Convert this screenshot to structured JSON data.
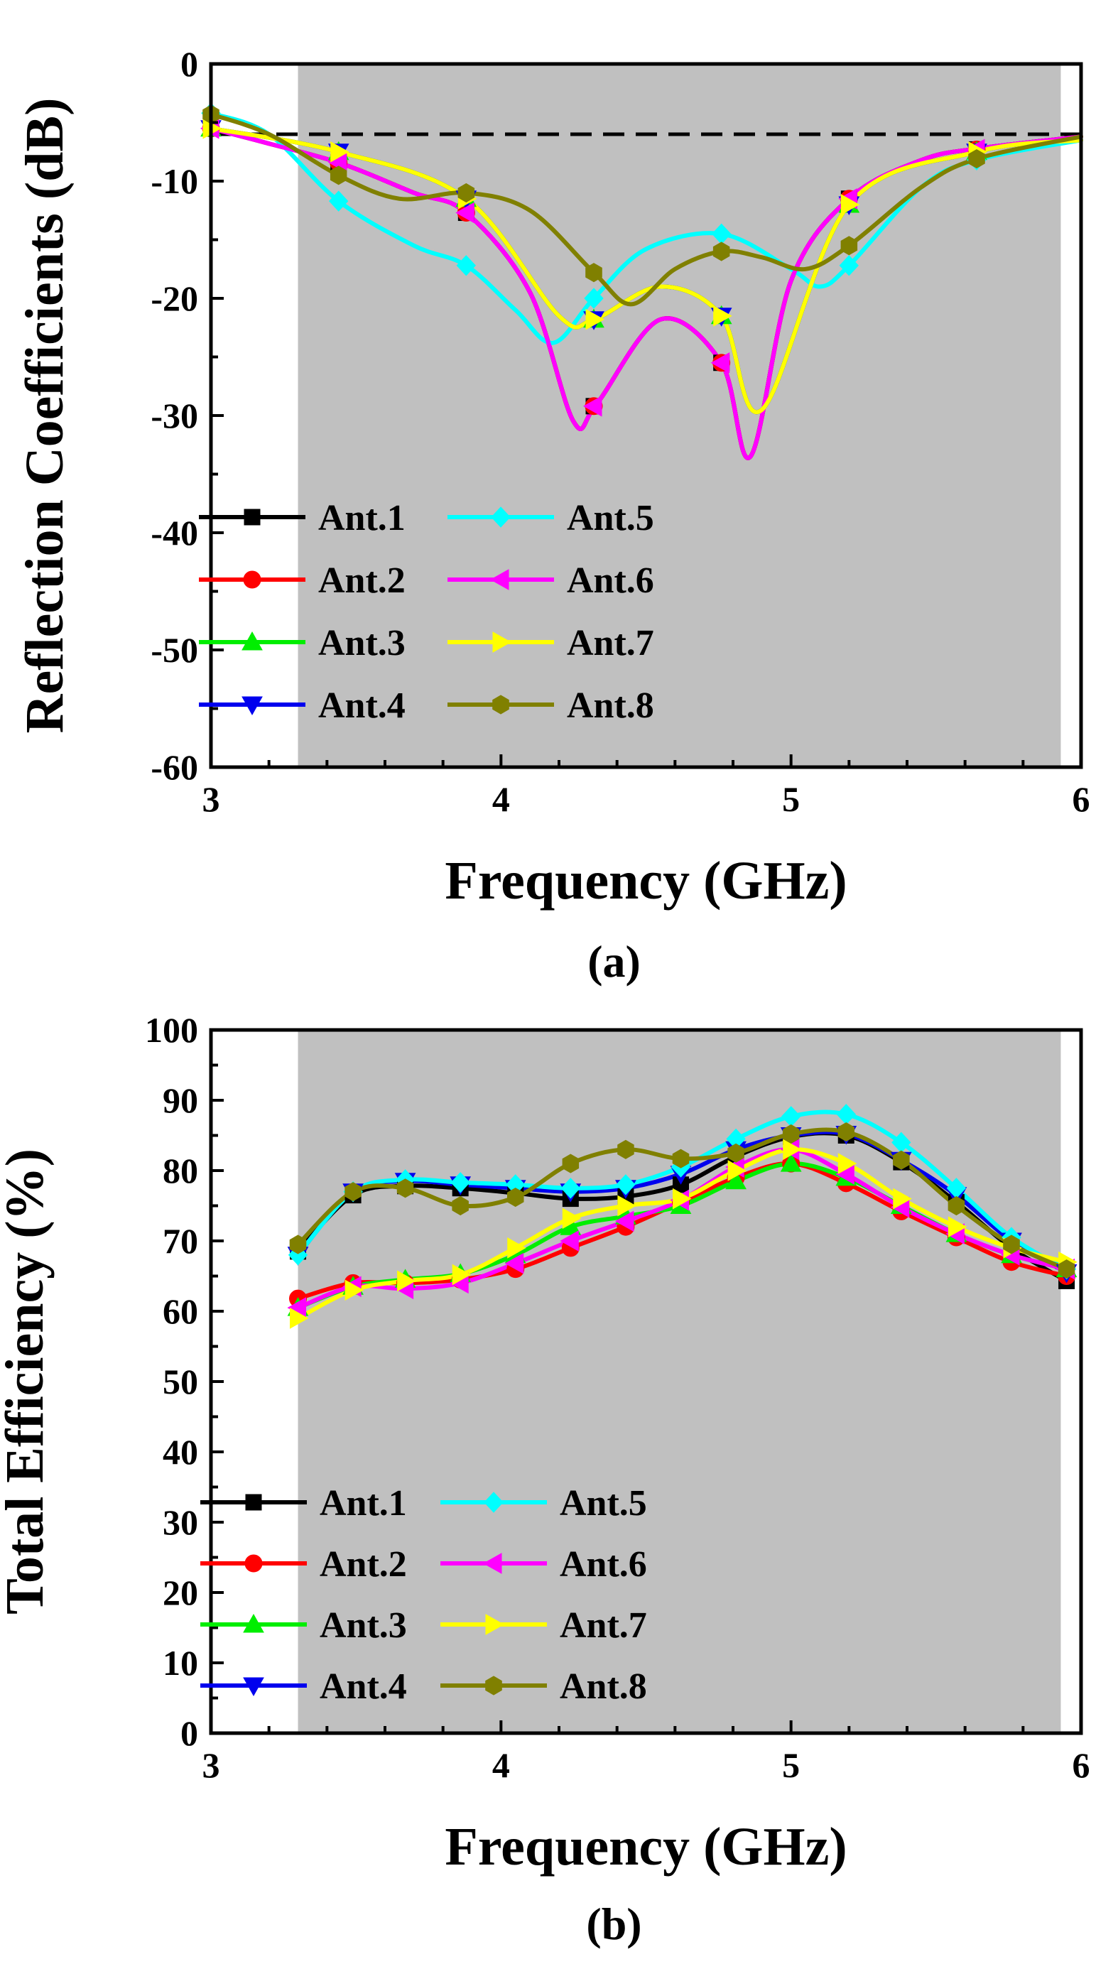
{
  "chart_data": [
    {
      "type": "line",
      "panel_label": "(a)",
      "xlabel": "Frequency (GHz)",
      "ylabel": "Reflection Coefficients (dB)",
      "xlim": [
        3,
        6
      ],
      "ylim": [
        -60,
        0
      ],
      "xticks": [
        "3",
        "4",
        "5",
        "6"
      ],
      "yticks": [
        "0",
        "-10",
        "-20",
        "-30",
        "-40",
        "-50",
        "-60"
      ],
      "shaded_band": [
        3.3,
        5.93
      ],
      "reference_line": -6,
      "legend": [
        "Ant.1",
        "Ant.2",
        "Ant.3",
        "Ant.4",
        "Ant.5",
        "Ant.6",
        "Ant.7",
        "Ant.8"
      ],
      "series": [
        {
          "name": "Ant.1",
          "color": "#000000",
          "marker": "square",
          "x": [
            3.0,
            3.2,
            3.45,
            3.7,
            3.88,
            4.1,
            4.25,
            4.33,
            4.55,
            4.76,
            4.86,
            5.0,
            5.2,
            5.45,
            5.65,
            6.0
          ],
          "values": [
            -5.5,
            -6.8,
            -8.5,
            -11.0,
            -12.7,
            -19.5,
            -30.5,
            -29.0,
            -21.8,
            -25.5,
            -33.5,
            -18.5,
            -11.5,
            -8.2,
            -7.2,
            -6.2
          ],
          "marker_x": [
            3.0,
            3.44,
            3.88,
            4.32,
            4.76,
            5.2,
            5.64
          ],
          "marker_y": [
            -5.5,
            -8.4,
            -12.7,
            -29.2,
            -25.5,
            -11.5,
            -7.3
          ]
        },
        {
          "name": "Ant.2",
          "color": "#ff0000",
          "marker": "circle",
          "x": [
            3.0,
            3.2,
            3.45,
            3.7,
            3.88,
            4.1,
            4.25,
            4.33,
            4.55,
            4.76,
            4.86,
            5.0,
            5.2,
            5.45,
            5.65,
            6.0
          ],
          "values": [
            -5.5,
            -6.8,
            -8.5,
            -11.0,
            -12.7,
            -19.5,
            -30.5,
            -29.0,
            -21.8,
            -25.5,
            -33.5,
            -18.5,
            -11.5,
            -8.2,
            -7.2,
            -6.2
          ],
          "marker_x": [
            3.0,
            3.44,
            3.88,
            4.32,
            4.76,
            5.2,
            5.64
          ],
          "marker_y": [
            -5.5,
            -8.4,
            -12.7,
            -29.2,
            -25.5,
            -11.5,
            -7.3
          ]
        },
        {
          "name": "Ant.3",
          "color": "#00ee00",
          "marker": "triangle-up",
          "x": [
            3.0,
            3.44,
            3.88,
            4.2,
            4.32,
            4.55,
            4.76,
            4.9,
            5.2,
            5.64,
            6.0
          ],
          "values": [
            -5.5,
            -7.5,
            -11.5,
            -21.5,
            -21.8,
            -19.0,
            -21.5,
            -29.5,
            -12.0,
            -7.5,
            -6.5
          ],
          "marker_x": [
            3.0,
            3.44,
            3.88,
            4.32,
            4.76,
            5.2,
            5.64
          ],
          "marker_y": [
            -5.5,
            -7.5,
            -11.5,
            -21.8,
            -21.5,
            -12.0,
            -7.5
          ]
        },
        {
          "name": "Ant.4",
          "color": "#0000ee",
          "marker": "triangle-down",
          "x": [
            3.0,
            3.44,
            3.88,
            4.2,
            4.32,
            4.55,
            4.76,
            4.9,
            5.2,
            5.64,
            6.0
          ],
          "values": [
            -5.5,
            -7.5,
            -11.5,
            -21.5,
            -21.8,
            -19.0,
            -21.5,
            -29.5,
            -12.0,
            -7.5,
            -6.5
          ],
          "marker_x": [
            3.0,
            3.44,
            3.88,
            4.32,
            4.76,
            5.2,
            5.64
          ],
          "marker_y": [
            -5.5,
            -7.5,
            -11.5,
            -21.8,
            -21.5,
            -12.0,
            -7.5
          ]
        },
        {
          "name": "Ant.5",
          "color": "#00ffff",
          "marker": "diamond",
          "x": [
            3.0,
            3.2,
            3.44,
            3.7,
            3.88,
            4.05,
            4.18,
            4.32,
            4.5,
            4.76,
            5.0,
            5.1,
            5.2,
            5.45,
            5.64,
            6.0
          ],
          "values": [
            -4.2,
            -6.0,
            -11.7,
            -15.5,
            -17.2,
            -21.0,
            -23.8,
            -20.0,
            -15.8,
            -14.5,
            -17.5,
            -19.0,
            -17.2,
            -10.5,
            -8.2,
            -6.5
          ],
          "marker_x": [
            3.0,
            3.44,
            3.88,
            4.32,
            4.76,
            5.2,
            5.64
          ],
          "marker_y": [
            -4.2,
            -11.7,
            -17.2,
            -20.0,
            -14.5,
            -17.2,
            -8.2
          ]
        },
        {
          "name": "Ant.6",
          "color": "#ff00ff",
          "marker": "triangle-left",
          "x": [
            3.0,
            3.2,
            3.45,
            3.7,
            3.88,
            4.1,
            4.25,
            4.33,
            4.55,
            4.76,
            4.86,
            5.0,
            5.2,
            5.45,
            5.65,
            6.0
          ],
          "values": [
            -5.5,
            -6.8,
            -8.5,
            -11.0,
            -12.7,
            -19.5,
            -30.5,
            -29.0,
            -21.8,
            -25.5,
            -33.5,
            -18.5,
            -11.5,
            -8.2,
            -7.2,
            -6.2
          ],
          "marker_x": [
            3.0,
            3.44,
            3.88,
            4.32,
            4.76,
            5.2,
            5.64
          ],
          "marker_y": [
            -5.5,
            -8.4,
            -12.7,
            -29.2,
            -25.5,
            -11.5,
            -7.3
          ]
        },
        {
          "name": "Ant.7",
          "color": "#ffff00",
          "marker": "triangle-right",
          "x": [
            3.0,
            3.44,
            3.88,
            4.2,
            4.32,
            4.55,
            4.76,
            4.9,
            5.2,
            5.64,
            6.0
          ],
          "values": [
            -5.5,
            -7.5,
            -11.5,
            -21.5,
            -21.8,
            -19.0,
            -21.5,
            -29.5,
            -12.0,
            -7.5,
            -6.5
          ],
          "marker_x": [
            3.0,
            3.44,
            3.88,
            4.32,
            4.76,
            5.2,
            5.64
          ],
          "marker_y": [
            -5.5,
            -7.5,
            -11.5,
            -21.8,
            -21.5,
            -12.0,
            -7.5
          ]
        },
        {
          "name": "Ant.8",
          "color": "#808000",
          "marker": "hexagon",
          "x": [
            3.0,
            3.2,
            3.44,
            3.65,
            3.88,
            4.1,
            4.32,
            4.45,
            4.6,
            4.76,
            4.9,
            5.05,
            5.2,
            5.45,
            5.64,
            6.0
          ],
          "values": [
            -4.3,
            -6.0,
            -9.5,
            -11.5,
            -11.0,
            -12.5,
            -17.8,
            -20.5,
            -17.5,
            -16.0,
            -16.5,
            -17.5,
            -15.5,
            -10.5,
            -8.1,
            -6.2
          ],
          "marker_x": [
            3.0,
            3.44,
            3.88,
            4.32,
            4.76,
            5.2,
            5.64
          ],
          "marker_y": [
            -4.3,
            -9.5,
            -11.0,
            -17.8,
            -16.0,
            -15.5,
            -8.1
          ]
        }
      ]
    },
    {
      "type": "line",
      "panel_label": "(b)",
      "xlabel": "Frequency (GHz)",
      "ylabel": "Total Efficiency (%)",
      "xlim": [
        3,
        6
      ],
      "ylim": [
        0,
        100
      ],
      "xticks": [
        "3",
        "4",
        "5",
        "6"
      ],
      "yticks": [
        "100",
        "90",
        "80",
        "70",
        "60",
        "50",
        "40",
        "30",
        "20",
        "10",
        "0"
      ],
      "shaded_band": [
        3.3,
        5.93
      ],
      "legend": [
        "Ant.1",
        "Ant.2",
        "Ant.3",
        "Ant.4",
        "Ant.5",
        "Ant.6",
        "Ant.7",
        "Ant.8"
      ],
      "series": [
        {
          "name": "Ant.1",
          "color": "#000000",
          "marker": "square",
          "x": [
            3.3,
            3.49,
            3.67,
            3.86,
            4.05,
            4.24,
            4.43,
            4.62,
            4.81,
            5.0,
            5.19,
            5.38,
            5.57,
            5.76,
            5.95
          ],
          "values": [
            68.5,
            76.5,
            77.8,
            77.5,
            76.8,
            76.0,
            76.3,
            78.0,
            82.0,
            84.8,
            85.0,
            81.2,
            75.5,
            69.0,
            64.3
          ]
        },
        {
          "name": "Ant.2",
          "color": "#ff0000",
          "marker": "circle",
          "x": [
            3.3,
            3.49,
            3.67,
            3.86,
            4.05,
            4.24,
            4.43,
            4.62,
            4.81,
            5.0,
            5.19,
            5.38,
            5.57,
            5.76,
            5.95
          ],
          "values": [
            61.8,
            64.0,
            64.0,
            64.5,
            66.0,
            69.0,
            72.0,
            75.5,
            79.0,
            81.0,
            78.2,
            74.2,
            70.5,
            67.0,
            65.0
          ]
        },
        {
          "name": "Ant.3",
          "color": "#00ee00",
          "marker": "triangle-up",
          "x": [
            3.3,
            3.49,
            3.67,
            3.86,
            4.05,
            4.24,
            4.43,
            4.62,
            4.81,
            5.0,
            5.19,
            5.38,
            5.57,
            5.76,
            5.95
          ],
          "values": [
            60.5,
            63.5,
            64.5,
            65.3,
            68.0,
            72.0,
            73.5,
            75.0,
            78.5,
            81.0,
            79.0,
            75.0,
            71.0,
            68.0,
            66.0
          ]
        },
        {
          "name": "Ant.4",
          "color": "#0000ee",
          "marker": "triangle-down",
          "x": [
            3.3,
            3.49,
            3.67,
            3.86,
            4.05,
            4.24,
            4.43,
            4.62,
            4.81,
            5.0,
            5.19,
            5.38,
            5.57,
            5.76,
            5.95
          ],
          "values": [
            68.0,
            77.0,
            78.5,
            78.0,
            77.5,
            77.0,
            77.5,
            79.5,
            83.0,
            85.0,
            85.2,
            81.5,
            76.5,
            70.0,
            65.5
          ]
        },
        {
          "name": "Ant.5",
          "color": "#00ffff",
          "marker": "diamond",
          "x": [
            3.3,
            3.49,
            3.67,
            3.86,
            4.05,
            4.24,
            4.43,
            4.62,
            4.81,
            5.0,
            5.19,
            5.38,
            5.57,
            5.76,
            5.95
          ],
          "values": [
            68.0,
            77.0,
            78.7,
            78.3,
            78.0,
            77.5,
            78.0,
            80.5,
            84.5,
            87.7,
            88.0,
            84.0,
            77.5,
            70.5,
            66.0
          ]
        },
        {
          "name": "Ant.6",
          "color": "#ff00ff",
          "marker": "triangle-left",
          "x": [
            3.3,
            3.49,
            3.67,
            3.86,
            4.05,
            4.24,
            4.43,
            4.62,
            4.81,
            5.0,
            5.19,
            5.38,
            5.57,
            5.76,
            5.95
          ],
          "values": [
            60.5,
            63.5,
            63.2,
            64.0,
            66.8,
            70.0,
            72.8,
            75.8,
            80.5,
            83.0,
            79.5,
            74.8,
            71.0,
            68.0,
            66.0
          ]
        },
        {
          "name": "Ant.7",
          "color": "#ffff00",
          "marker": "triangle-right",
          "x": [
            3.3,
            3.49,
            3.67,
            3.86,
            4.05,
            4.24,
            4.43,
            4.62,
            4.81,
            5.0,
            5.19,
            5.38,
            5.57,
            5.76,
            5.95
          ],
          "values": [
            59.0,
            63.0,
            64.3,
            65.2,
            69.0,
            73.2,
            75.0,
            76.0,
            80.0,
            83.0,
            81.0,
            76.0,
            72.0,
            69.0,
            67.0
          ]
        },
        {
          "name": "Ant.8",
          "color": "#808000",
          "marker": "hexagon",
          "x": [
            3.3,
            3.49,
            3.67,
            3.86,
            4.05,
            4.24,
            4.43,
            4.62,
            4.81,
            5.0,
            5.19,
            5.38,
            5.57,
            5.76,
            5.95
          ],
          "values": [
            69.5,
            77.0,
            77.5,
            75.0,
            76.2,
            81.0,
            83.0,
            81.7,
            82.5,
            85.2,
            85.5,
            81.5,
            75.0,
            69.5,
            66.0
          ]
        }
      ]
    }
  ]
}
